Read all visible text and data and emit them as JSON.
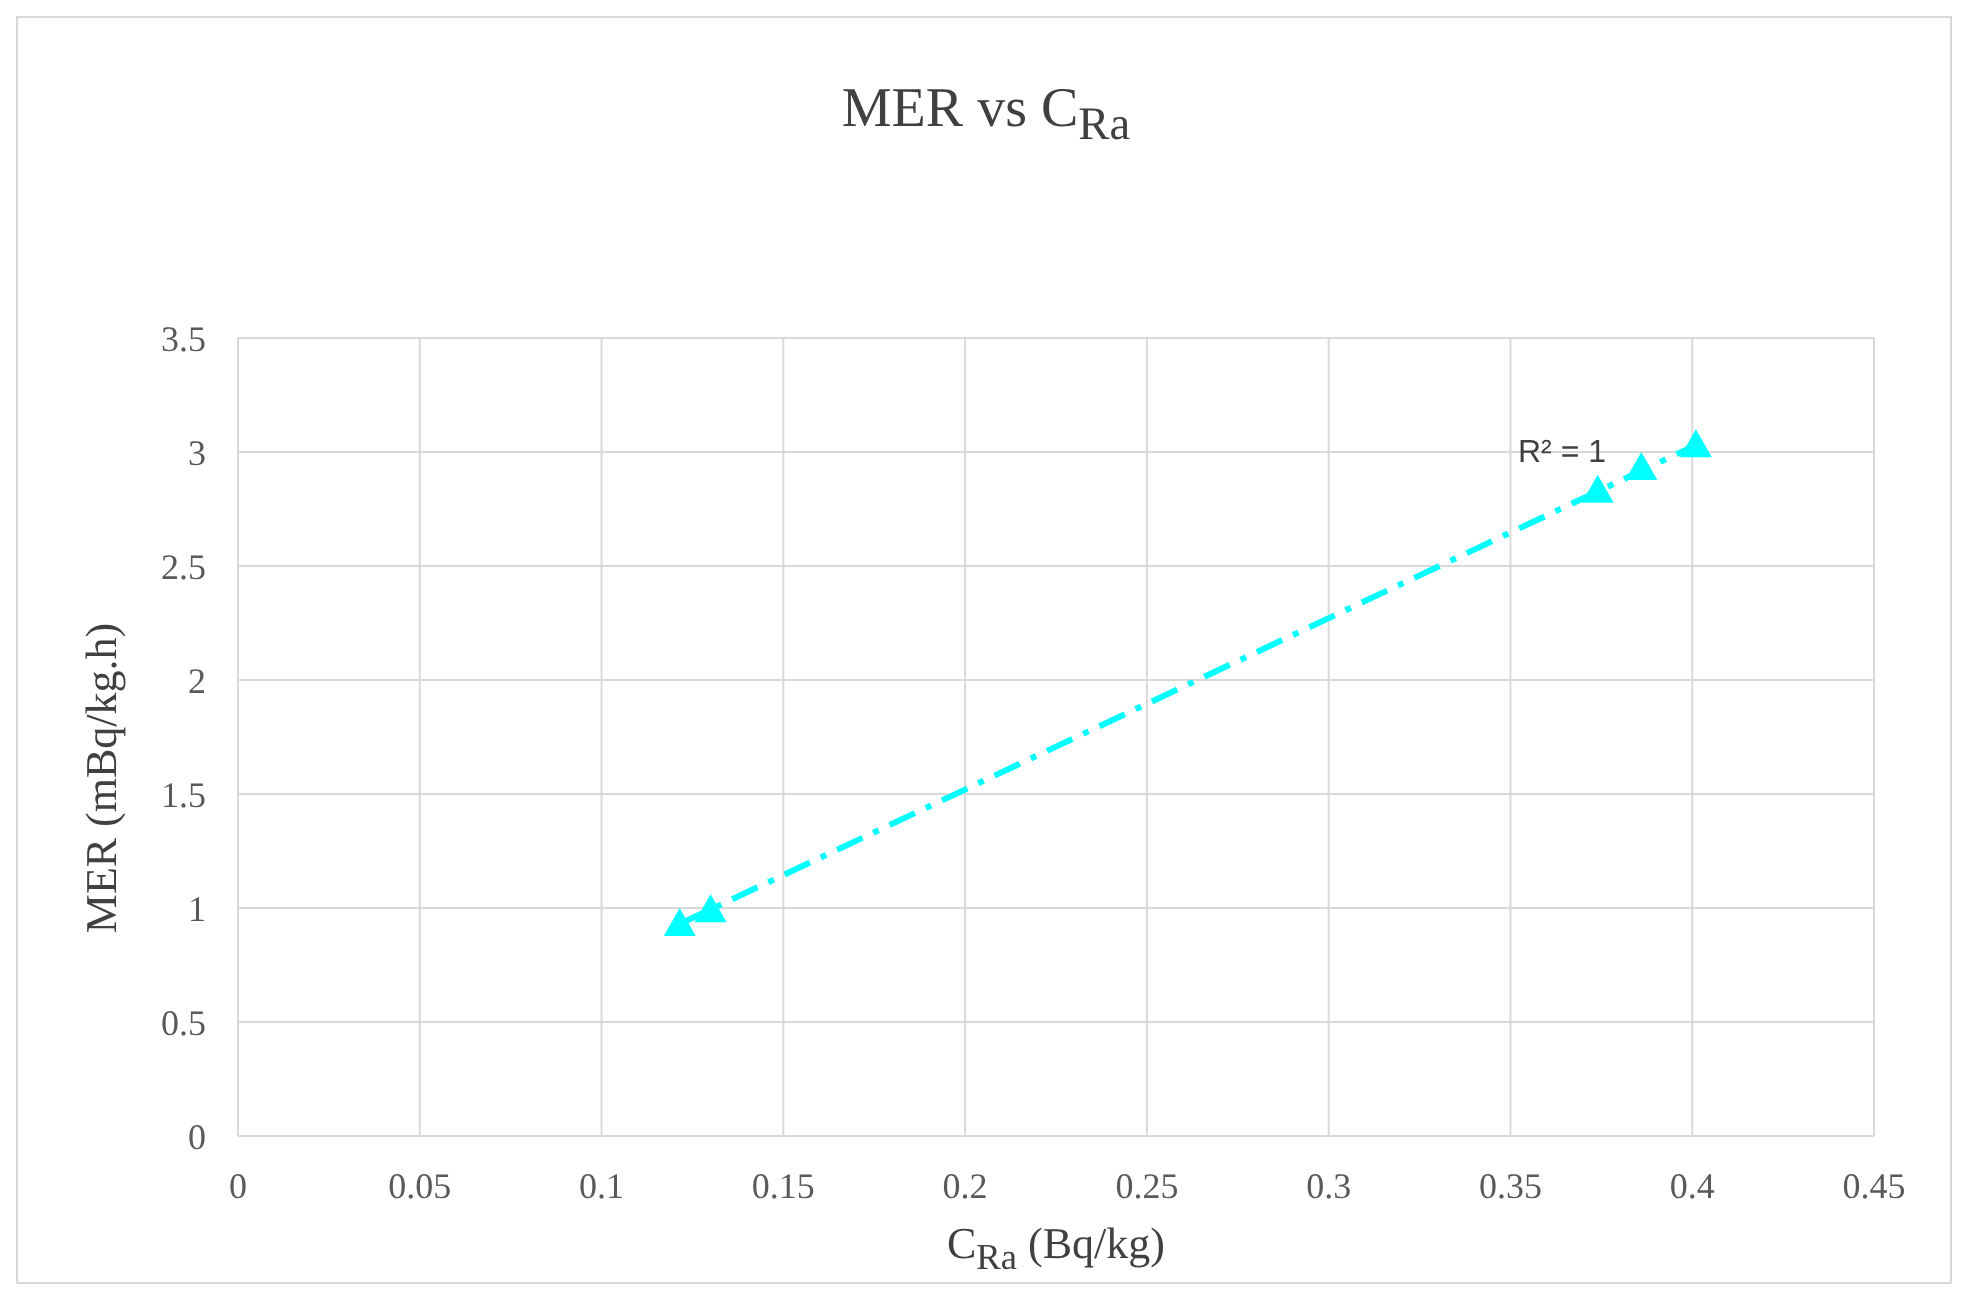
{
  "chart_data": {
    "type": "scatter",
    "title": "MER vs C$_{Ra}$",
    "xlabel": "C$_{Ra}$ (Bq/kg)",
    "ylabel": "MER (mBq/kg.h)",
    "series": [
      {
        "color": "#00ffff",
        "marker": "triangle",
        "x": [
          0.1215,
          0.13,
          0.374,
          0.386,
          0.401
        ],
        "values": [
          0.93,
          0.99,
          2.83,
          2.93,
          3.03
        ]
      },
      {
        "type": "line",
        "color": "#00ffff",
        "marker": "none",
        "line_style": "dashed",
        "x": [
          0.1215,
          0.401
        ],
        "values": [
          0.93,
          3.03
        ]
      }
    ],
    "annotations": [
      "R² = 1"
    ],
    "xlim": [
      0,
      0.45
    ],
    "xticks": [
      0,
      0.05,
      0.1,
      0.15,
      0.2,
      0.25,
      0.3,
      0.35,
      0.4,
      0.45
    ],
    "ylim": [
      0,
      3.5
    ],
    "yticks": [
      0,
      0.5,
      1,
      1.5,
      2,
      2.5,
      3,
      3.5
    ],
    "grid": true,
    "legend": false
  }
}
